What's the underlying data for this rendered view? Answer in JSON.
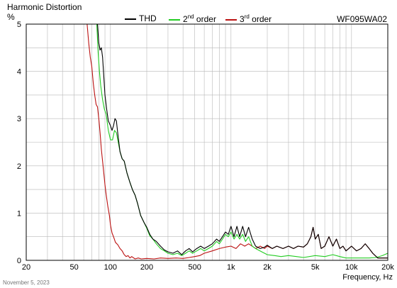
{
  "header": {
    "title": "Harmonic Distortion",
    "y_unit": "%",
    "model": "WF095WA02",
    "date": "November 5, 2023"
  },
  "chart_data": {
    "type": "line",
    "title": "Harmonic Distortion",
    "xlabel": "Frequency, Hz",
    "ylabel": "%",
    "x_scale": "log",
    "xlim": [
      20,
      20000
    ],
    "ylim": [
      0,
      5
    ],
    "grid": true,
    "legend_position": "top-center",
    "x_ticks": [
      {
        "value": 20,
        "label": "20"
      },
      {
        "value": 50,
        "label": "50"
      },
      {
        "value": 100,
        "label": "100"
      },
      {
        "value": 200,
        "label": "200"
      },
      {
        "value": 500,
        "label": "500"
      },
      {
        "value": 1000,
        "label": "1k"
      },
      {
        "value": 2000,
        "label": "2k"
      },
      {
        "value": 5000,
        "label": "5k"
      },
      {
        "value": 10000,
        "label": "10k"
      },
      {
        "value": 20000,
        "label": "20k"
      }
    ],
    "y_ticks": [
      0,
      1,
      2,
      3,
      4,
      5
    ],
    "series": [
      {
        "name": "THD",
        "label": "THD",
        "color": "#000000",
        "points": [
          [
            78,
            5.0
          ],
          [
            80,
            4.6
          ],
          [
            82,
            4.45
          ],
          [
            84,
            4.5
          ],
          [
            86,
            4.3
          ],
          [
            88,
            3.9
          ],
          [
            90,
            3.5
          ],
          [
            93,
            3.2
          ],
          [
            96,
            2.95
          ],
          [
            100,
            2.85
          ],
          [
            103,
            2.75
          ],
          [
            106,
            2.85
          ],
          [
            109,
            3.0
          ],
          [
            112,
            2.95
          ],
          [
            116,
            2.6
          ],
          [
            120,
            2.3
          ],
          [
            125,
            2.15
          ],
          [
            130,
            2.1
          ],
          [
            137,
            1.85
          ],
          [
            145,
            1.65
          ],
          [
            152,
            1.5
          ],
          [
            160,
            1.38
          ],
          [
            168,
            1.2
          ],
          [
            178,
            0.95
          ],
          [
            190,
            0.8
          ],
          [
            200,
            0.7
          ],
          [
            212,
            0.55
          ],
          [
            225,
            0.45
          ],
          [
            240,
            0.4
          ],
          [
            260,
            0.3
          ],
          [
            280,
            0.22
          ],
          [
            300,
            0.18
          ],
          [
            330,
            0.15
          ],
          [
            360,
            0.2
          ],
          [
            390,
            0.12
          ],
          [
            420,
            0.2
          ],
          [
            450,
            0.25
          ],
          [
            480,
            0.18
          ],
          [
            520,
            0.25
          ],
          [
            560,
            0.3
          ],
          [
            600,
            0.25
          ],
          [
            650,
            0.3
          ],
          [
            700,
            0.35
          ],
          [
            760,
            0.45
          ],
          [
            800,
            0.4
          ],
          [
            850,
            0.5
          ],
          [
            900,
            0.6
          ],
          [
            950,
            0.55
          ],
          [
            1000,
            0.72
          ],
          [
            1060,
            0.5
          ],
          [
            1120,
            0.72
          ],
          [
            1180,
            0.5
          ],
          [
            1250,
            0.72
          ],
          [
            1320,
            0.5
          ],
          [
            1400,
            0.7
          ],
          [
            1500,
            0.45
          ],
          [
            1600,
            0.3
          ],
          [
            1750,
            0.25
          ],
          [
            1900,
            0.28
          ],
          [
            2000,
            0.32
          ],
          [
            2200,
            0.25
          ],
          [
            2400,
            0.3
          ],
          [
            2700,
            0.25
          ],
          [
            3000,
            0.3
          ],
          [
            3300,
            0.25
          ],
          [
            3600,
            0.3
          ],
          [
            4000,
            0.28
          ],
          [
            4300,
            0.35
          ],
          [
            4600,
            0.5
          ],
          [
            4800,
            0.7
          ],
          [
            5000,
            0.45
          ],
          [
            5300,
            0.55
          ],
          [
            5600,
            0.25
          ],
          [
            6000,
            0.3
          ],
          [
            6500,
            0.5
          ],
          [
            7000,
            0.3
          ],
          [
            7500,
            0.45
          ],
          [
            8000,
            0.25
          ],
          [
            8500,
            0.3
          ],
          [
            9000,
            0.2
          ],
          [
            9500,
            0.25
          ],
          [
            10000,
            0.3
          ],
          [
            11000,
            0.2
          ],
          [
            12000,
            0.25
          ],
          [
            13000,
            0.35
          ],
          [
            14000,
            0.25
          ],
          [
            15000,
            0.15
          ],
          [
            16500,
            0.05
          ],
          [
            18000,
            0.05
          ],
          [
            20000,
            0.05
          ]
        ]
      },
      {
        "name": "2nd order",
        "label": "2",
        "label_sup": "nd",
        "label_suffix": " order",
        "color": "#22cc22",
        "points": [
          [
            77,
            5.0
          ],
          [
            79,
            4.4
          ],
          [
            81,
            4.0
          ],
          [
            83,
            3.7
          ],
          [
            86,
            3.4
          ],
          [
            89,
            3.2
          ],
          [
            92,
            3.1
          ],
          [
            96,
            2.75
          ],
          [
            100,
            2.55
          ],
          [
            104,
            2.55
          ],
          [
            108,
            2.75
          ],
          [
            112,
            2.7
          ],
          [
            116,
            2.5
          ],
          [
            120,
            2.3
          ],
          [
            125,
            2.15
          ],
          [
            130,
            2.1
          ],
          [
            137,
            1.85
          ],
          [
            145,
            1.65
          ],
          [
            152,
            1.5
          ],
          [
            160,
            1.38
          ],
          [
            168,
            1.2
          ],
          [
            178,
            0.95
          ],
          [
            190,
            0.8
          ],
          [
            200,
            0.68
          ],
          [
            212,
            0.52
          ],
          [
            225,
            0.45
          ],
          [
            240,
            0.35
          ],
          [
            260,
            0.25
          ],
          [
            280,
            0.2
          ],
          [
            300,
            0.15
          ],
          [
            330,
            0.12
          ],
          [
            360,
            0.15
          ],
          [
            390,
            0.1
          ],
          [
            420,
            0.15
          ],
          [
            450,
            0.2
          ],
          [
            480,
            0.15
          ],
          [
            520,
            0.2
          ],
          [
            560,
            0.25
          ],
          [
            600,
            0.2
          ],
          [
            650,
            0.25
          ],
          [
            700,
            0.3
          ],
          [
            760,
            0.4
          ],
          [
            800,
            0.35
          ],
          [
            850,
            0.45
          ],
          [
            900,
            0.55
          ],
          [
            950,
            0.5
          ],
          [
            1000,
            0.6
          ],
          [
            1060,
            0.45
          ],
          [
            1120,
            0.55
          ],
          [
            1180,
            0.45
          ],
          [
            1250,
            0.55
          ],
          [
            1320,
            0.4
          ],
          [
            1400,
            0.5
          ],
          [
            1500,
            0.3
          ],
          [
            1600,
            0.25
          ],
          [
            1800,
            0.18
          ],
          [
            2000,
            0.12
          ],
          [
            2300,
            0.1
          ],
          [
            2600,
            0.08
          ],
          [
            3000,
            0.1
          ],
          [
            3500,
            0.08
          ],
          [
            4000,
            0.06
          ],
          [
            5000,
            0.1
          ],
          [
            6000,
            0.08
          ],
          [
            7000,
            0.12
          ],
          [
            8000,
            0.08
          ],
          [
            9000,
            0.05
          ],
          [
            10000,
            0.05
          ],
          [
            12000,
            0.05
          ],
          [
            14000,
            0.05
          ],
          [
            16000,
            0.06
          ],
          [
            18000,
            0.1
          ],
          [
            20000,
            0.15
          ]
        ]
      },
      {
        "name": "3rd order",
        "label": "3",
        "label_sup": "rd",
        "label_suffix": " order",
        "color": "#bb1111",
        "points": [
          [
            64,
            5.0
          ],
          [
            66,
            4.6
          ],
          [
            68,
            4.3
          ],
          [
            70,
            4.1
          ],
          [
            72,
            3.75
          ],
          [
            74,
            3.5
          ],
          [
            76,
            3.3
          ],
          [
            78,
            3.25
          ],
          [
            80,
            3.0
          ],
          [
            82,
            2.7
          ],
          [
            84,
            2.35
          ],
          [
            86,
            2.1
          ],
          [
            88,
            1.85
          ],
          [
            90,
            1.6
          ],
          [
            92,
            1.4
          ],
          [
            95,
            1.15
          ],
          [
            98,
            0.95
          ],
          [
            100,
            0.75
          ],
          [
            103,
            0.58
          ],
          [
            106,
            0.5
          ],
          [
            110,
            0.38
          ],
          [
            115,
            0.33
          ],
          [
            120,
            0.25
          ],
          [
            125,
            0.2
          ],
          [
            130,
            0.12
          ],
          [
            135,
            0.08
          ],
          [
            140,
            0.1
          ],
          [
            145,
            0.05
          ],
          [
            150,
            0.08
          ],
          [
            160,
            0.03
          ],
          [
            170,
            0.05
          ],
          [
            180,
            0.03
          ],
          [
            200,
            0.04
          ],
          [
            230,
            0.03
          ],
          [
            260,
            0.05
          ],
          [
            300,
            0.04
          ],
          [
            350,
            0.05
          ],
          [
            400,
            0.04
          ],
          [
            450,
            0.06
          ],
          [
            500,
            0.08
          ],
          [
            550,
            0.1
          ],
          [
            600,
            0.15
          ],
          [
            700,
            0.2
          ],
          [
            800,
            0.25
          ],
          [
            900,
            0.28
          ],
          [
            1000,
            0.3
          ],
          [
            1100,
            0.25
          ],
          [
            1200,
            0.35
          ],
          [
            1300,
            0.3
          ],
          [
            1400,
            0.35
          ],
          [
            1500,
            0.3
          ],
          [
            1600,
            0.25
          ],
          [
            1750,
            0.3
          ],
          [
            1900,
            0.25
          ],
          [
            2000,
            0.3
          ],
          [
            2200,
            0.25
          ],
          [
            2400,
            0.3
          ],
          [
            2700,
            0.25
          ],
          [
            3000,
            0.3
          ],
          [
            3300,
            0.25
          ],
          [
            3600,
            0.3
          ],
          [
            4000,
            0.28
          ],
          [
            4300,
            0.35
          ],
          [
            4600,
            0.5
          ],
          [
            4800,
            0.7
          ],
          [
            5000,
            0.45
          ],
          [
            5300,
            0.55
          ],
          [
            5600,
            0.25
          ],
          [
            6000,
            0.3
          ],
          [
            6500,
            0.5
          ],
          [
            7000,
            0.3
          ],
          [
            7500,
            0.45
          ],
          [
            8000,
            0.25
          ],
          [
            8500,
            0.3
          ],
          [
            9000,
            0.2
          ],
          [
            9500,
            0.25
          ],
          [
            10000,
            0.3
          ],
          [
            11000,
            0.2
          ],
          [
            12000,
            0.25
          ],
          [
            13000,
            0.35
          ],
          [
            14000,
            0.25
          ],
          [
            15000,
            0.15
          ],
          [
            16500,
            0.05
          ],
          [
            18000,
            0.05
          ],
          [
            20000,
            0.05
          ]
        ]
      }
    ]
  }
}
